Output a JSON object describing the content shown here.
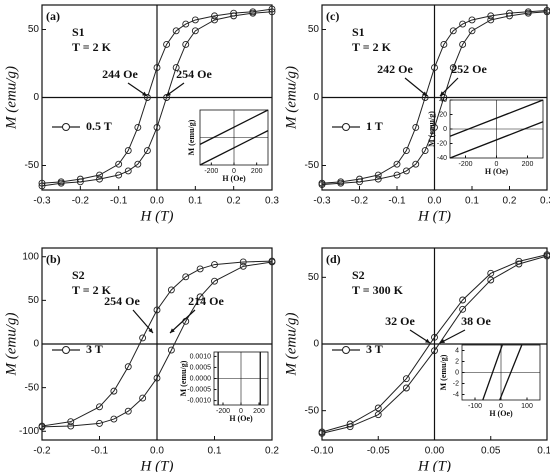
{
  "chart_data": [
    {
      "type": "line",
      "panel": "(a)",
      "sample": "S1",
      "temperature": "T = 2 K",
      "xlabel": "H (T)",
      "ylabel": "M (emu/g)",
      "xlim": [
        -0.3,
        0.3
      ],
      "xticks": [
        -0.3,
        -0.2,
        -0.1,
        {
          "value": 0,
          "label": "0.0"
        },
        0.1,
        0.2,
        0.3
      ],
      "ylim": [
        -68,
        68
      ],
      "yticks": [
        -50,
        0,
        50
      ],
      "annotations": [
        "244 Oe",
        "254 Oe"
      ],
      "series": [
        {
          "name": "0.5 T",
          "color": "#222222",
          "x": [
            0.3,
            0.25,
            0.2,
            0.15,
            0.1,
            0.075,
            0.05,
            0.025,
            0,
            -0.025,
            -0.05,
            -0.075,
            -0.1,
            -0.15,
            -0.2,
            -0.25,
            -0.3,
            -0.3,
            -0.25,
            -0.2,
            -0.15,
            -0.1,
            -0.075,
            -0.05,
            -0.025,
            0,
            0.025,
            0.05,
            0.075,
            0.1,
            0.15,
            0.2,
            0.25,
            0.3
          ],
          "values": [
            65,
            63,
            62,
            60,
            57,
            54,
            49,
            39,
            22,
            0,
            -22,
            -39,
            -49,
            -57,
            -60,
            -62,
            -63,
            -65,
            -63,
            -62,
            -60,
            -57,
            -54,
            -49,
            -39,
            -22,
            0,
            22,
            39,
            49,
            57,
            60,
            62,
            63
          ]
        }
      ],
      "inset": {
        "xlabel": "H (Oe)",
        "ylabel": "M (emu/g)",
        "xlim": [
          -300,
          300
        ],
        "xticks": [
          -200,
          0,
          200
        ],
        "ylim": [
          -40,
          40
        ],
        "lines": [
          {
            "x": [
              -300,
              300
            ],
            "values": [
              -10,
              40
            ]
          },
          {
            "x": [
              -300,
              300
            ],
            "values": [
              -40,
              10
            ]
          }
        ]
      }
    },
    {
      "type": "line",
      "panel": "(c)",
      "sample": "S1",
      "temperature": "T = 2 K",
      "xlabel": "H (T)",
      "ylabel": "M (emu/g)",
      "xlim": [
        -0.3,
        0.3
      ],
      "xticks": [
        -0.3,
        -0.2,
        -0.1,
        {
          "value": 0,
          "label": "0.0"
        },
        0.1,
        0.2,
        0.3
      ],
      "ylim": [
        -68,
        68
      ],
      "yticks": [
        -50,
        0,
        50
      ],
      "annotations": [
        "242 Oe",
        "252 Oe"
      ],
      "series": [
        {
          "name": "1 T",
          "color": "#222222",
          "x": [
            0.3,
            0.25,
            0.2,
            0.15,
            0.1,
            0.075,
            0.05,
            0.025,
            0,
            -0.025,
            -0.05,
            -0.075,
            -0.1,
            -0.15,
            -0.2,
            -0.25,
            -0.3,
            -0.3,
            -0.25,
            -0.2,
            -0.15,
            -0.1,
            -0.075,
            -0.05,
            -0.025,
            0,
            0.025,
            0.05,
            0.075,
            0.1,
            0.15,
            0.2,
            0.25,
            0.3
          ],
          "values": [
            64,
            63,
            62,
            60,
            57,
            54,
            49,
            39,
            22,
            0,
            -22,
            -39,
            -49,
            -57,
            -60,
            -62,
            -63,
            -64,
            -63,
            -62,
            -60,
            -57,
            -54,
            -49,
            -39,
            -22,
            0,
            22,
            39,
            49,
            57,
            60,
            62,
            63
          ]
        }
      ],
      "inset": {
        "xlabel": "H (Oe)",
        "ylabel": "M (emu/g)",
        "xlim": [
          -300,
          300
        ],
        "xticks": [
          -200,
          0,
          200
        ],
        "ylim": [
          -40,
          40
        ],
        "yticks": [
          -40,
          -20,
          0,
          20,
          40
        ],
        "lines": [
          {
            "x": [
              -300,
              300
            ],
            "values": [
              -10,
              40
            ]
          },
          {
            "x": [
              -300,
              300
            ],
            "values": [
              -40,
              10
            ]
          }
        ]
      }
    },
    {
      "type": "line",
      "panel": "(b)",
      "sample": "S2",
      "temperature": "T = 2 K",
      "xlabel": "H (T)",
      "ylabel": "M (emu/g)",
      "xlim": [
        -0.2,
        0.2
      ],
      "xticks": [
        -0.2,
        -0.1,
        {
          "value": 0,
          "label": "0.0"
        },
        0.1,
        0.2
      ],
      "ylim": [
        -110,
        110
      ],
      "yticks": [
        -100,
        -50,
        0,
        50,
        100
      ],
      "annotations": [
        "254 Oe",
        "214 Oe"
      ],
      "series": [
        {
          "name": "3 T",
          "color": "#222222",
          "x": [
            0.2,
            0.15,
            0.1,
            0.075,
            0.05,
            0.025,
            0,
            -0.025,
            -0.05,
            -0.075,
            -0.1,
            -0.15,
            -0.2,
            -0.2,
            -0.15,
            -0.1,
            -0.075,
            -0.05,
            -0.025,
            0,
            0.025,
            0.05,
            0.075,
            0.1,
            0.15,
            0.2
          ],
          "values": [
            95,
            94,
            91,
            86,
            77,
            62,
            39,
            7,
            -26,
            -54,
            -72,
            -89,
            -94,
            -95,
            -94,
            -91,
            -86,
            -77,
            -62,
            -39,
            -7,
            26,
            54,
            72,
            89,
            94
          ]
        }
      ],
      "inset": {
        "xlabel": "H (Oe)",
        "ylabel": "M (emu/g)",
        "xlim": [
          -300,
          300
        ],
        "xticks": [
          -200,
          0,
          200
        ],
        "ylim": [
          -0.0012,
          0.0012
        ],
        "yticks": [
          {
            "value": -0.001,
            "label": "-0.0010"
          },
          {
            "value": -0.0005,
            "label": "-0.0005"
          },
          {
            "value": 0,
            "label": "0.0000"
          },
          {
            "value": 0.0005,
            "label": "0.0005"
          },
          {
            "value": 0.001,
            "label": "0.0010"
          }
        ],
        "lines": [
          {
            "x": [
              -254,
              -254
            ],
            "values": [
              -0.0012,
              0.0012
            ]
          },
          {
            "x": [
              214,
              214
            ],
            "values": [
              -0.0012,
              0.0012
            ]
          }
        ]
      }
    },
    {
      "type": "line",
      "panel": "(d)",
      "sample": "S2",
      "temperature": "T = 300 K",
      "xlabel": "H (T)",
      "ylabel": "M (emu/g)",
      "xlim": [
        -0.1,
        0.1
      ],
      "xticks": [
        {
          "value": -0.1,
          "label": "-0.10"
        },
        -0.05,
        {
          "value": 0,
          "label": "0.00"
        },
        0.05,
        {
          "value": 0.1,
          "label": "0.10"
        }
      ],
      "ylim": [
        -72,
        72
      ],
      "yticks": [
        -50,
        0,
        50
      ],
      "annotations": [
        "32 Oe",
        "38 Oe"
      ],
      "series": [
        {
          "name": "3 T",
          "color": "#222222",
          "x": [
            0.1,
            0.075,
            0.05,
            0.025,
            0,
            -0.025,
            -0.05,
            -0.075,
            -0.1,
            -0.1,
            -0.075,
            -0.05,
            -0.025,
            0,
            0.025,
            0.05,
            0.075,
            0.1
          ],
          "values": [
            67,
            62,
            53,
            33,
            5,
            -26,
            -48,
            -60,
            -66,
            -67,
            -62,
            -53,
            -33,
            -5,
            26,
            48,
            60,
            66
          ]
        }
      ],
      "inset": {
        "xlabel": "H (Oe)",
        "ylabel": "M (emu/g)",
        "xlim": [
          -150,
          150
        ],
        "xticks": [
          -100,
          0,
          100
        ],
        "ylim": [
          -5,
          5
        ],
        "yticks": [
          -4,
          -2,
          0,
          2,
          4
        ],
        "lines": [
          {
            "x": [
              -70,
              5
            ],
            "values": [
              -5,
              5
            ]
          },
          {
            "x": [
              -5,
              80
            ],
            "values": [
              -5,
              5
            ]
          }
        ]
      }
    }
  ]
}
